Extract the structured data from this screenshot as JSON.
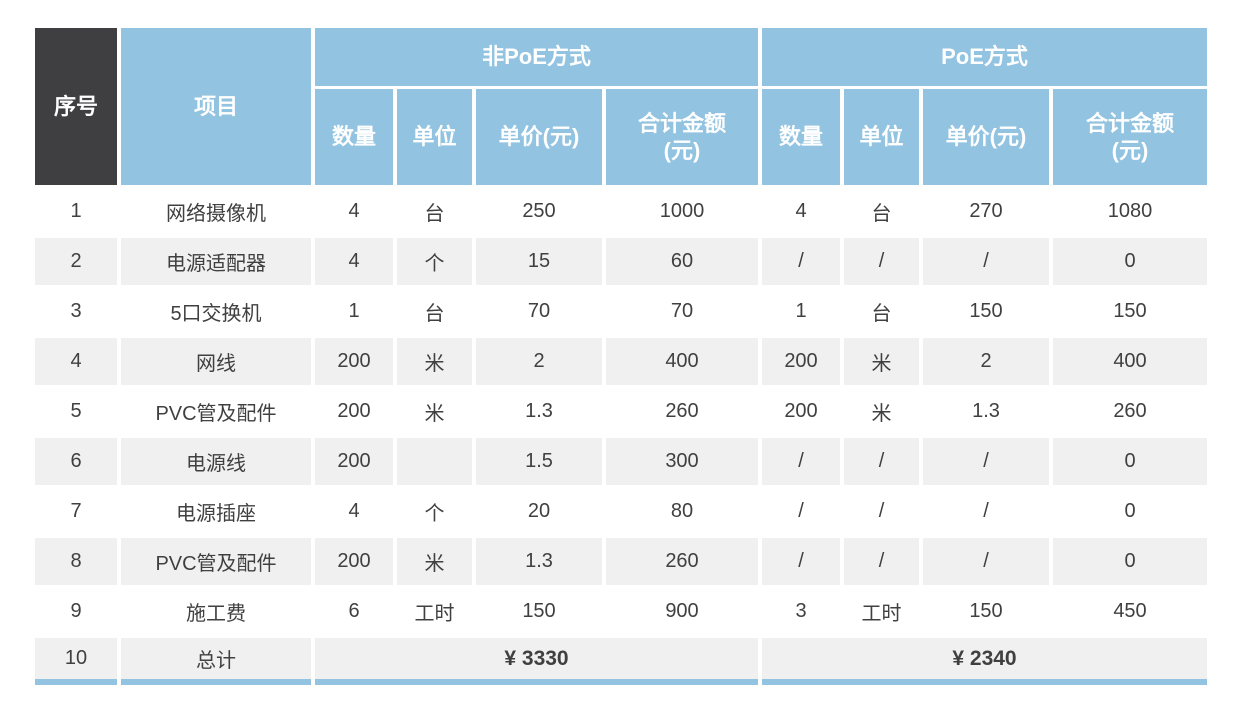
{
  "colors": {
    "header_blue": "#92c3e1",
    "corner_dark": "#3f3f41",
    "row_stripe": "#f0f0f0",
    "body_text": "#404040",
    "header_text": "#ffffff",
    "bottom_bar": "#92c3e1"
  },
  "table": {
    "corner_header": "序号",
    "item_header": "项目",
    "group_headers": [
      "非PoE方式",
      "PoE方式"
    ],
    "sub_headers": [
      "数量",
      "单位",
      "单价(元)",
      "合计金额\n(元)",
      "数量",
      "单位",
      "单价(元)",
      "合计金额\n(元)"
    ],
    "rows": [
      {
        "no": "1",
        "item": "网络摄像机",
        "cells": [
          "4",
          "台",
          "250",
          "1000",
          "4",
          "台",
          "270",
          "1080"
        ]
      },
      {
        "no": "2",
        "item": "电源适配器",
        "cells": [
          "4",
          "个",
          "15",
          "60",
          "/",
          "/",
          "/",
          "0"
        ]
      },
      {
        "no": "3",
        "item": "5口交换机",
        "cells": [
          "1",
          "台",
          "70",
          "70",
          "1",
          "台",
          "150",
          "150"
        ]
      },
      {
        "no": "4",
        "item": "网线",
        "cells": [
          "200",
          "米",
          "2",
          "400",
          "200",
          "米",
          "2",
          "400"
        ]
      },
      {
        "no": "5",
        "item": "PVC管及配件",
        "cells": [
          "200",
          "米",
          "1.3",
          "260",
          "200",
          "米",
          "1.3",
          "260"
        ]
      },
      {
        "no": "6",
        "item": "电源线",
        "cells": [
          "200",
          "",
          "1.5",
          "300",
          "/",
          "/",
          "/",
          "0"
        ]
      },
      {
        "no": "7",
        "item": "电源插座",
        "cells": [
          "4",
          "个",
          "20",
          "80",
          "/",
          "/",
          "/",
          "0"
        ]
      },
      {
        "no": "8",
        "item": "PVC管及配件",
        "cells": [
          "200",
          "米",
          "1.3",
          "260",
          "/",
          "/",
          "/",
          "0"
        ]
      },
      {
        "no": "9",
        "item": "施工费",
        "cells": [
          "6",
          "工时",
          "150",
          "900",
          "3",
          "工时",
          "150",
          "450"
        ]
      }
    ],
    "total_row": {
      "no": "10",
      "item": "总计",
      "totals": [
        "¥ 3330",
        "¥ 2340"
      ]
    }
  }
}
